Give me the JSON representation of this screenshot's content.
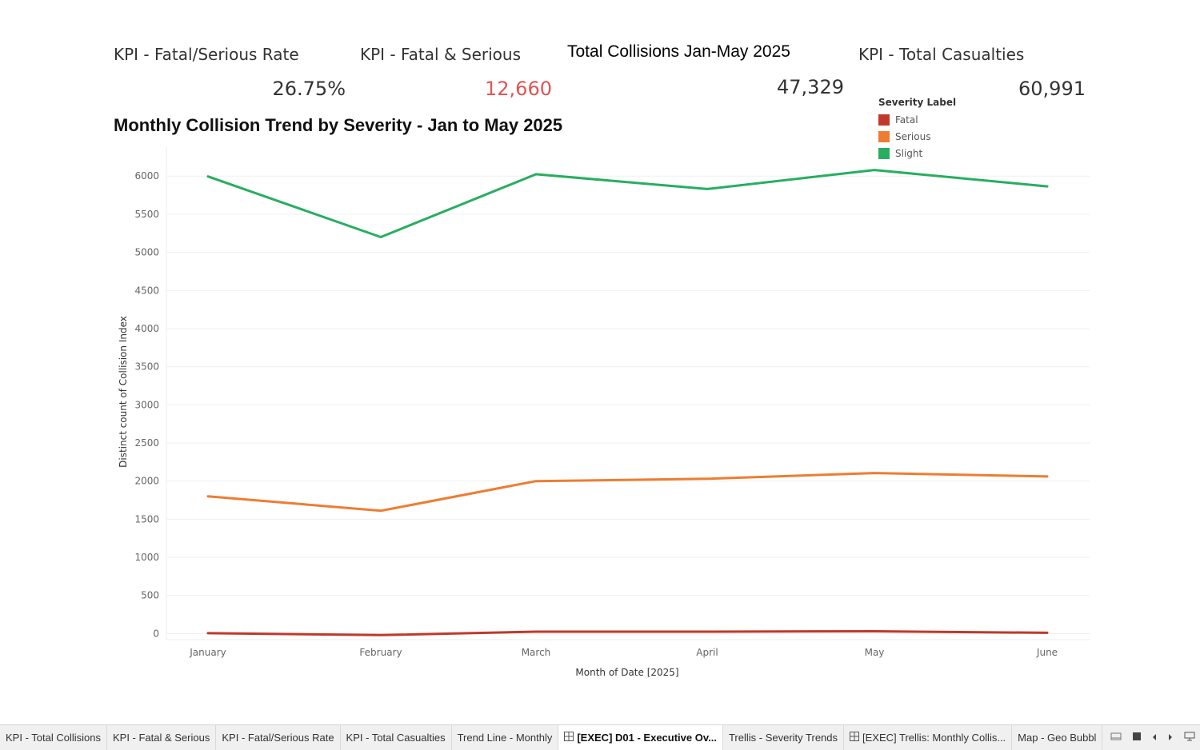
{
  "kpis": {
    "fatal_serious_rate": {
      "title": "KPI - Fatal/Serious Rate",
      "value": "26.75%"
    },
    "fatal_serious": {
      "title": "KPI - Fatal & Serious",
      "value": "12,660"
    },
    "total_collisions": {
      "title": "Total Collisions Jan-May 2025",
      "value": "47,329"
    },
    "total_casualties": {
      "title": "KPI - Total Casualties",
      "value": "60,991"
    }
  },
  "colors": {
    "fatal": "#c0392b",
    "serious": "#ed7d31",
    "slight": "#27ae60",
    "highlight_value": "#e05555"
  },
  "chart_data": {
    "type": "line",
    "title": "Monthly Collision Trend by Severity - Jan to May 2025",
    "xlabel": "Month of Date [2025]",
    "ylabel": "Distinct count of Collision Index",
    "categories": [
      "January",
      "February",
      "March",
      "April",
      "May",
      "June"
    ],
    "y_ticks": [
      0,
      500,
      1000,
      1500,
      2000,
      2500,
      3000,
      3500,
      4000,
      4500,
      5000,
      5500,
      6000
    ],
    "ylim": [
      -80,
      6380
    ],
    "grid": true,
    "legend_title": "Severity Label",
    "legend_position": "top-right",
    "series": [
      {
        "name": "Fatal",
        "color": "#c0392b",
        "values": [
          5,
          -20,
          25,
          25,
          30,
          10
        ]
      },
      {
        "name": "Serious",
        "color": "#ed7d31",
        "values": [
          1800,
          1610,
          2000,
          2030,
          2105,
          2060
        ]
      },
      {
        "name": "Slight",
        "color": "#27ae60",
        "values": [
          5995,
          5200,
          6025,
          5830,
          6080,
          5865
        ]
      }
    ]
  },
  "tabs": [
    {
      "label": "KPI - Total Collisions",
      "icon": "",
      "active": false
    },
    {
      "label": "KPI - Fatal & Serious",
      "icon": "",
      "active": false
    },
    {
      "label": "KPI - Fatal/Serious Rate",
      "icon": "",
      "active": false
    },
    {
      "label": "KPI - Total Casualties",
      "icon": "",
      "active": false
    },
    {
      "label": "Trend Line - Monthly",
      "icon": "",
      "active": false
    },
    {
      "label": "[EXEC] D01 - Executive Ov...",
      "icon": "dashboard-icon",
      "active": true
    },
    {
      "label": "Trellis - Severity Trends",
      "icon": "",
      "active": false
    },
    {
      "label": "[EXEC] Trellis: Monthly Collis...",
      "icon": "dashboard-icon",
      "active": false
    },
    {
      "label": "Map - Geo Bubbl",
      "icon": "",
      "active": false
    }
  ],
  "tab_controls": [
    "filmstrip-icon",
    "grid-icon",
    "prev-icon",
    "next-icon",
    "presentation-icon"
  ]
}
